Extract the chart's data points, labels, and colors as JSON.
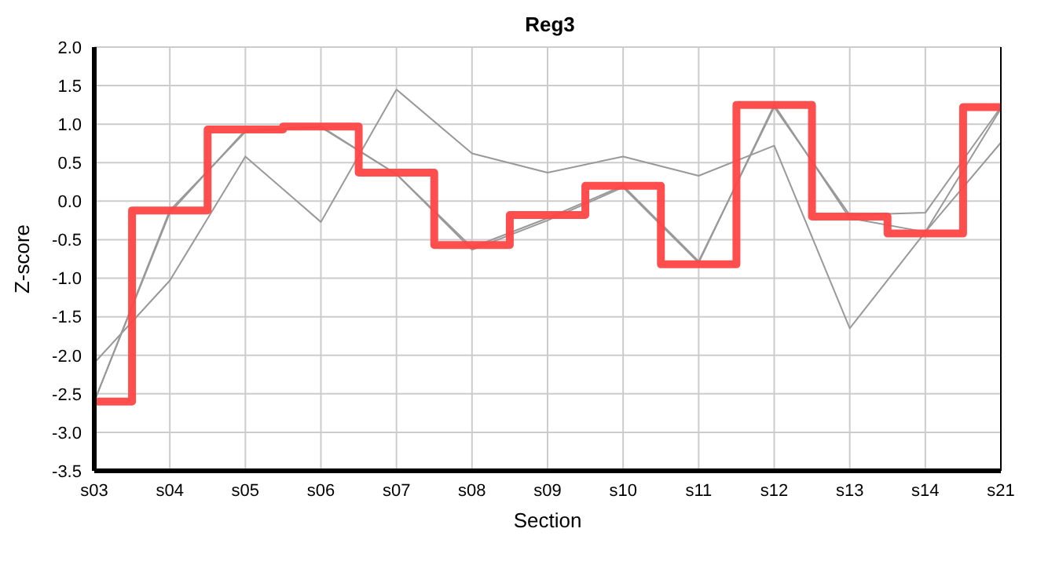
{
  "chart_data": {
    "type": "line",
    "title": "Reg3",
    "xlabel": "Section",
    "ylabel": "Z-score",
    "categories": [
      "s03",
      "s04",
      "s05",
      "s06",
      "s07",
      "s08",
      "s09",
      "s10",
      "s11",
      "s12",
      "s13",
      "s14",
      "s21"
    ],
    "ylim": [
      -3.5,
      2.0
    ],
    "yticks": [
      {
        "value": -3.5,
        "label": "-3.5"
      },
      {
        "value": -3,
        "label": "-3.0"
      },
      {
        "value": -2.5,
        "label": "-2.5"
      },
      {
        "value": -2,
        "label": "-2.0"
      },
      {
        "value": -1.5,
        "label": "-1.5"
      },
      {
        "value": -1,
        "label": "-1.0"
      },
      {
        "value": -0.5,
        "label": "-0.5"
      },
      {
        "value": 0,
        "label": "0.0"
      },
      {
        "value": 0.5,
        "label": "0.5"
      },
      {
        "value": 1,
        "label": "1.0"
      },
      {
        "value": 1.5,
        "label": "1.5"
      },
      {
        "value": 2,
        "label": "2.0"
      }
    ],
    "grid": true,
    "legend": false,
    "marker": "none",
    "line_style": "solid",
    "series": [
      {
        "type": "line",
        "color": "#999999",
        "values": [
          -2.1,
          -1.03,
          0.58,
          -0.27,
          1.45,
          0.62,
          0.37,
          0.58,
          0.33,
          0.72,
          -1.65,
          -0.4,
          0.76
        ]
      },
      {
        "type": "line",
        "color": "#999999",
        "values": [
          -2.6,
          -0.12,
          0.9,
          0.97,
          0.35,
          -0.6,
          -0.22,
          0.2,
          -0.78,
          1.22,
          -0.18,
          -0.15,
          1.22
        ]
      },
      {
        "type": "line",
        "color": "#999999",
        "values": [
          -2.6,
          -0.15,
          0.92,
          0.96,
          0.35,
          -0.63,
          -0.25,
          0.18,
          -0.8,
          1.25,
          -0.22,
          -0.4,
          1.2
        ]
      },
      {
        "type": "step",
        "color": "#ff4444",
        "values": [
          -2.6,
          -0.12,
          0.93,
          0.97,
          0.37,
          -0.57,
          -0.18,
          0.2,
          -0.82,
          1.25,
          -0.2,
          -0.42,
          1.22
        ]
      }
    ]
  }
}
